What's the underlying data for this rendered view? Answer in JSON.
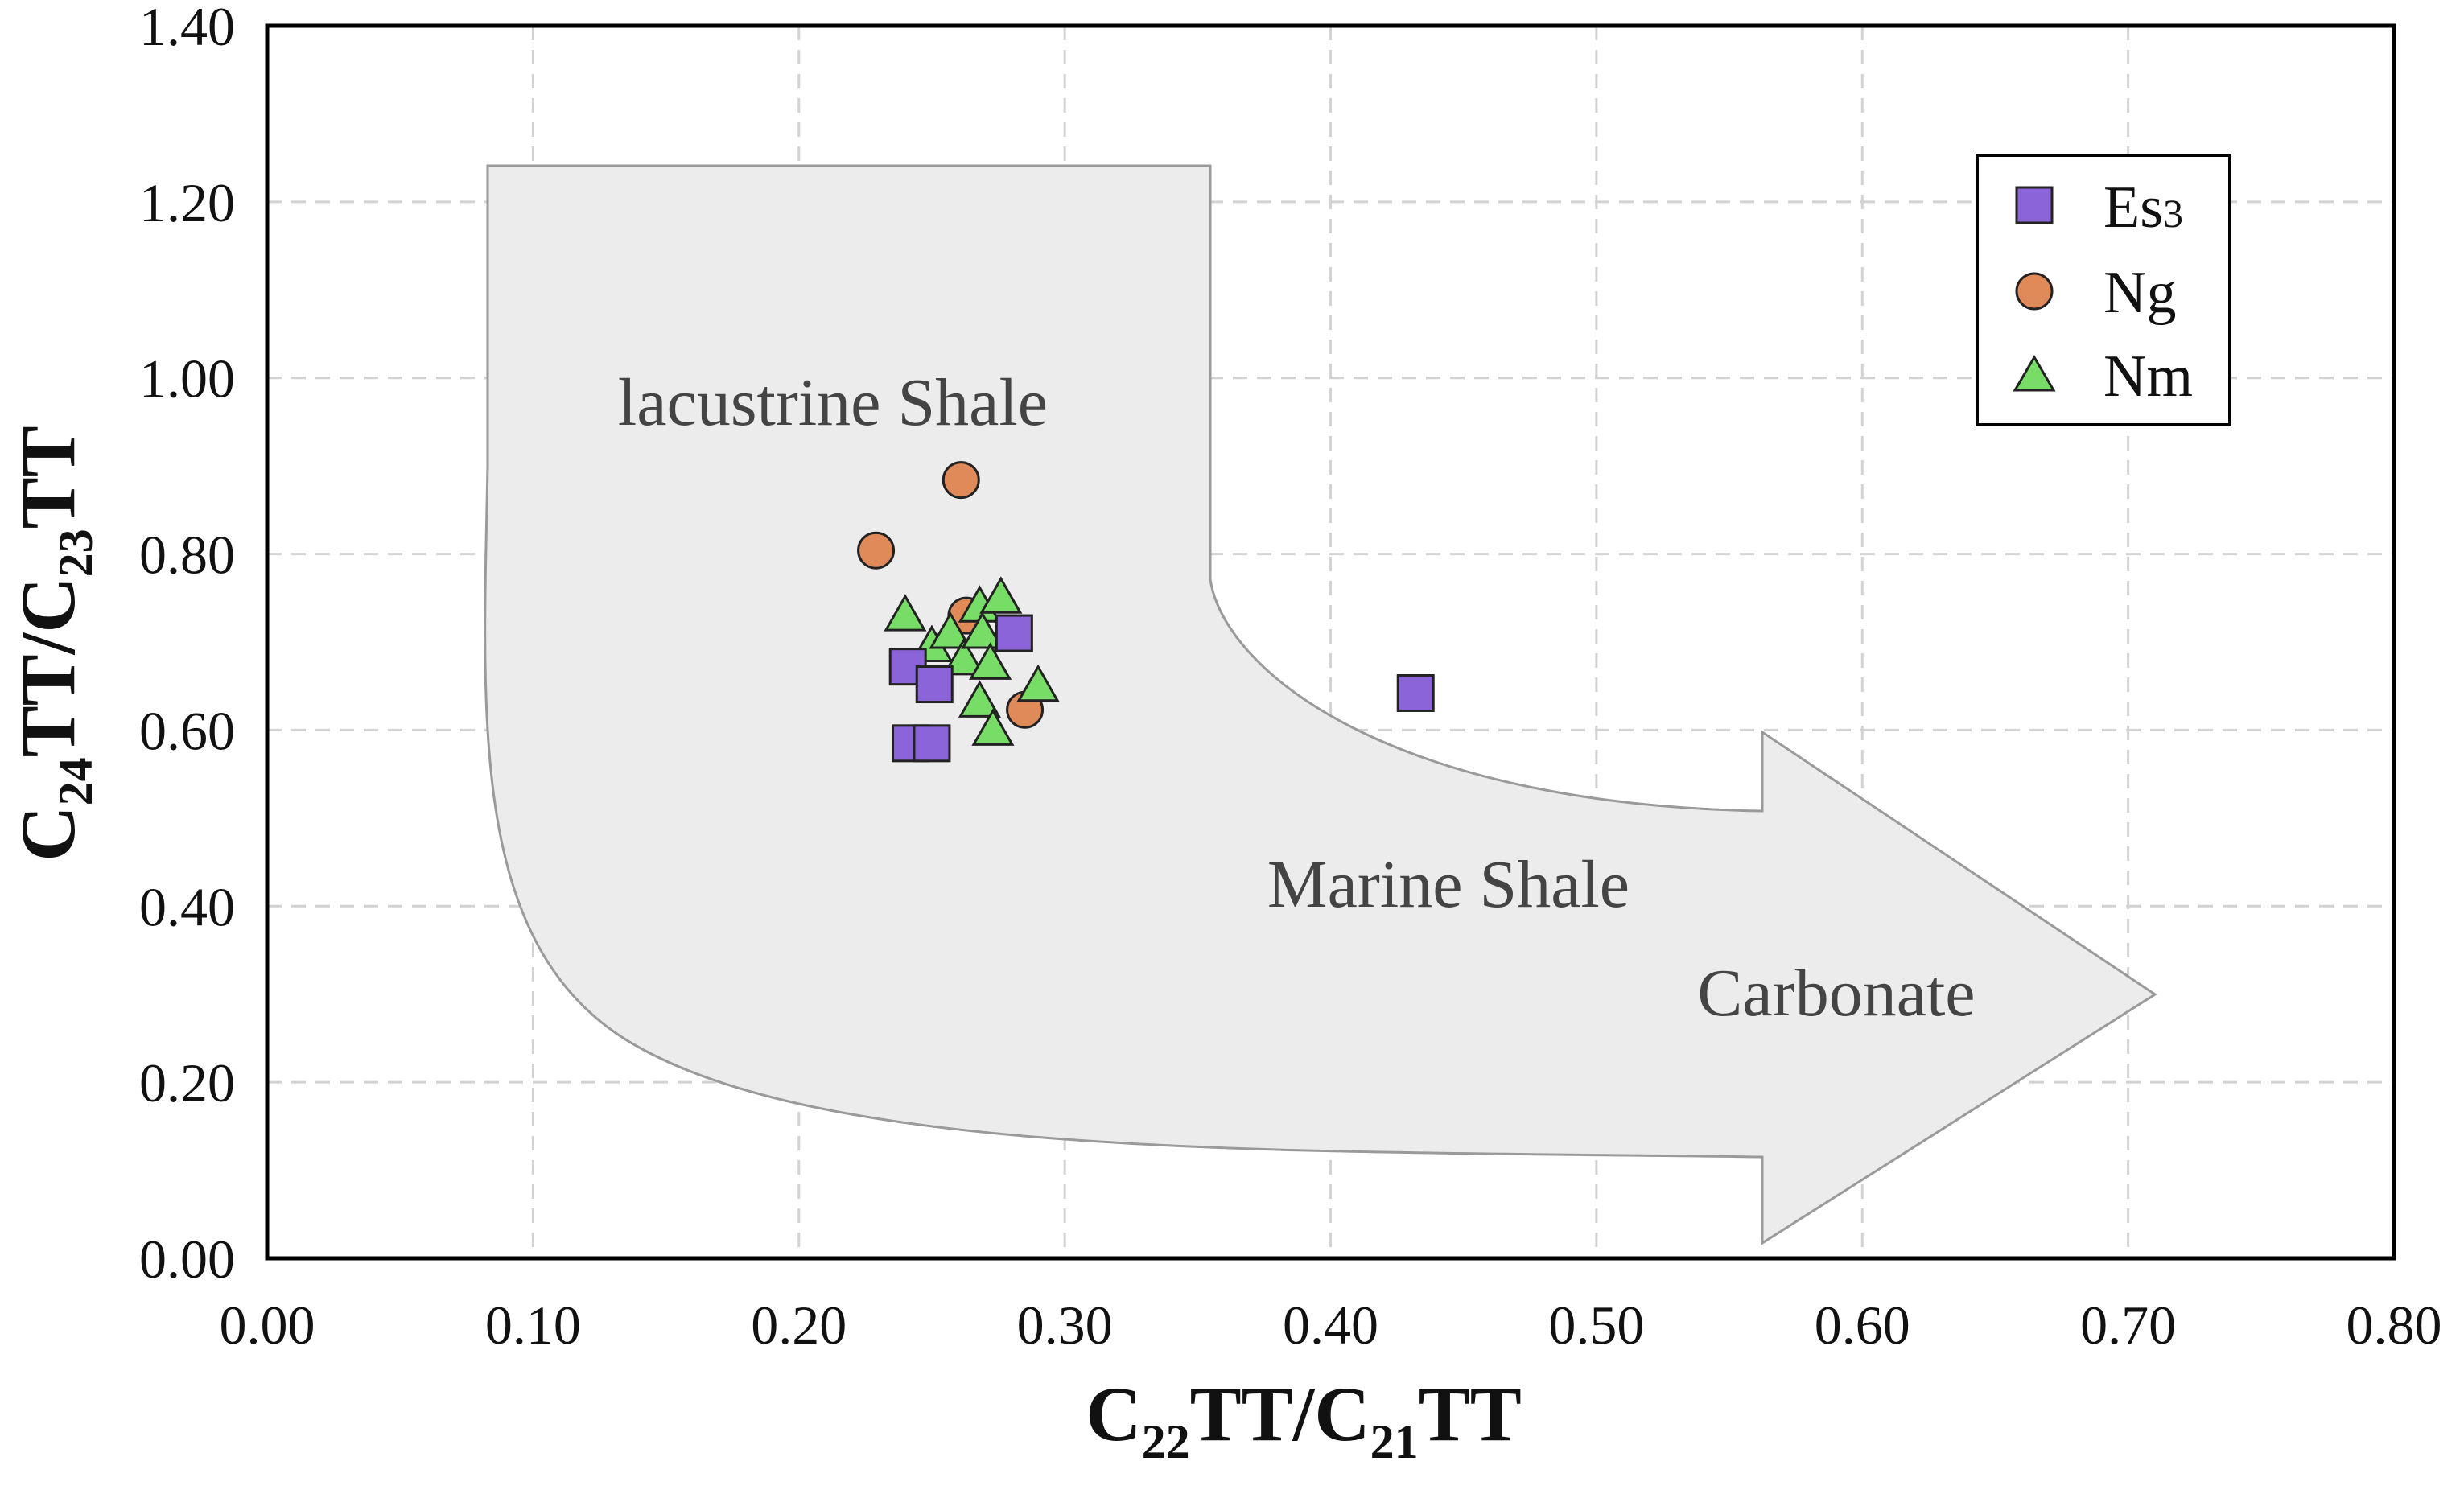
{
  "chart_data": {
    "type": "scatter",
    "xlabel": {
      "base1": "C",
      "sub1": "22",
      "base2": "TT/C",
      "sub2": "21",
      "base3": "TT"
    },
    "ylabel": {
      "base1": "C",
      "sub1": "24",
      "base2": "TT/C",
      "sub2": "23",
      "base3": "TT"
    },
    "xlim": [
      0.0,
      0.8
    ],
    "ylim": [
      0.0,
      1.4
    ],
    "xticks": [
      "0.00",
      "0.10",
      "0.20",
      "0.30",
      "0.40",
      "0.50",
      "0.60",
      "0.70",
      "0.80"
    ],
    "yticks": [
      "0.00",
      "0.20",
      "0.40",
      "0.60",
      "0.80",
      "1.00",
      "1.20",
      "1.40"
    ],
    "grid": true,
    "legend_position": "top-right",
    "regions": [
      {
        "label": "lacustrine Shale",
        "x": 0.212,
        "y": 0.985
      },
      {
        "label": "Marine Shale",
        "x": 0.442,
        "y": 0.305
      },
      {
        "label": "Carbonate",
        "x": 0.588,
        "y": 0.18
      }
    ],
    "series": [
      {
        "name": "Es",
        "name_sub": "3",
        "marker": "square",
        "color": "#8a64d8",
        "points": [
          [
            0.241,
            0.672
          ],
          [
            0.251,
            0.652
          ],
          [
            0.281,
            0.71
          ],
          [
            0.242,
            0.585
          ],
          [
            0.25,
            0.585
          ],
          [
            0.432,
            0.642
          ]
        ]
      },
      {
        "name": "Ng",
        "name_sub": "",
        "marker": "circle",
        "color": "#e08a5a",
        "points": [
          [
            0.229,
            0.804
          ],
          [
            0.261,
            0.884
          ],
          [
            0.263,
            0.73
          ],
          [
            0.285,
            0.623
          ]
        ]
      },
      {
        "name": "Nm",
        "name_sub": "",
        "marker": "triangle",
        "color": "#77dd66",
        "points": [
          [
            0.24,
            0.73
          ],
          [
            0.25,
            0.695
          ],
          [
            0.257,
            0.71
          ],
          [
            0.262,
            0.68
          ],
          [
            0.268,
            0.74
          ],
          [
            0.269,
            0.71
          ],
          [
            0.272,
            0.675
          ],
          [
            0.276,
            0.75
          ],
          [
            0.29,
            0.65
          ],
          [
            0.268,
            0.632
          ],
          [
            0.273,
            0.6
          ]
        ]
      }
    ]
  }
}
